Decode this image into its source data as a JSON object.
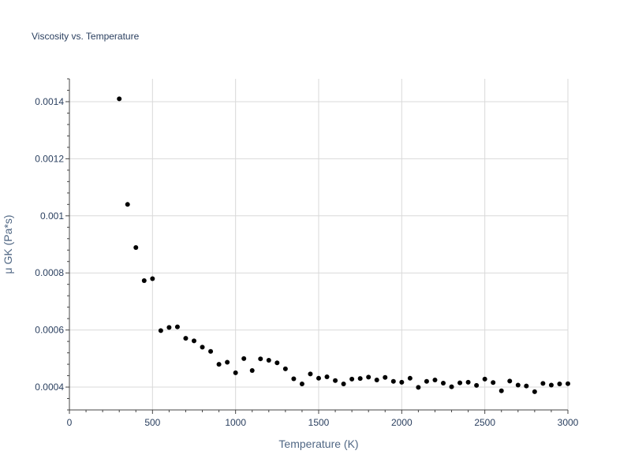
{
  "chart_data": {
    "type": "scatter",
    "title": "Viscosity vs. Temperature",
    "xlabel": "Temperature (K)",
    "ylabel": "μ GK (Pa*s)",
    "xlim": [
      0,
      3000
    ],
    "ylim": [
      0.00032,
      0.00148
    ],
    "x_ticks": [
      0,
      500,
      1000,
      1500,
      2000,
      2500,
      3000
    ],
    "x_tick_labels": [
      "0",
      "500",
      "1000",
      "1500",
      "2000",
      "2500",
      "3000"
    ],
    "y_ticks": [
      0.0004,
      0.0006,
      0.0008,
      0.001,
      0.0012,
      0.0014
    ],
    "y_tick_labels": [
      "0.0004",
      "0.0006",
      "0.0008",
      "0.001",
      "0.0012",
      "0.0014"
    ],
    "y_minor_step": 4e-05,
    "x_minor_step": 100,
    "grid": true,
    "marker_color": "#000000",
    "series": [
      {
        "name": "μ GK",
        "x": [
          300,
          350,
          400,
          450,
          500,
          550,
          600,
          650,
          700,
          750,
          800,
          850,
          900,
          950,
          1000,
          1050,
          1100,
          1150,
          1200,
          1250,
          1300,
          1350,
          1400,
          1450,
          1500,
          1550,
          1600,
          1650,
          1700,
          1750,
          1800,
          1850,
          1900,
          1950,
          2000,
          2050,
          2100,
          2150,
          2200,
          2250,
          2300,
          2350,
          2400,
          2450,
          2500,
          2550,
          2600,
          2650,
          2700,
          2750,
          2800,
          2850,
          2900,
          2950,
          3000
        ],
        "y": [
          0.00141,
          0.00104,
          0.000889,
          0.000773,
          0.00078,
          0.000598,
          0.000609,
          0.000611,
          0.000571,
          0.000562,
          0.00054,
          0.000525,
          0.00048,
          0.000487,
          0.00045,
          0.0005,
          0.000458,
          0.000499,
          0.000494,
          0.000485,
          0.000464,
          0.000429,
          0.000411,
          0.000446,
          0.000431,
          0.000436,
          0.000423,
          0.000411,
          0.000428,
          0.00043,
          0.000435,
          0.000425,
          0.000434,
          0.00042,
          0.000417,
          0.000431,
          0.000399,
          0.00042,
          0.000425,
          0.000414,
          0.000401,
          0.000415,
          0.000417,
          0.000406,
          0.000428,
          0.000416,
          0.000387,
          0.000421,
          0.000407,
          0.000404,
          0.000384,
          0.000413,
          0.000407,
          0.000411,
          0.000412
        ]
      }
    ]
  }
}
